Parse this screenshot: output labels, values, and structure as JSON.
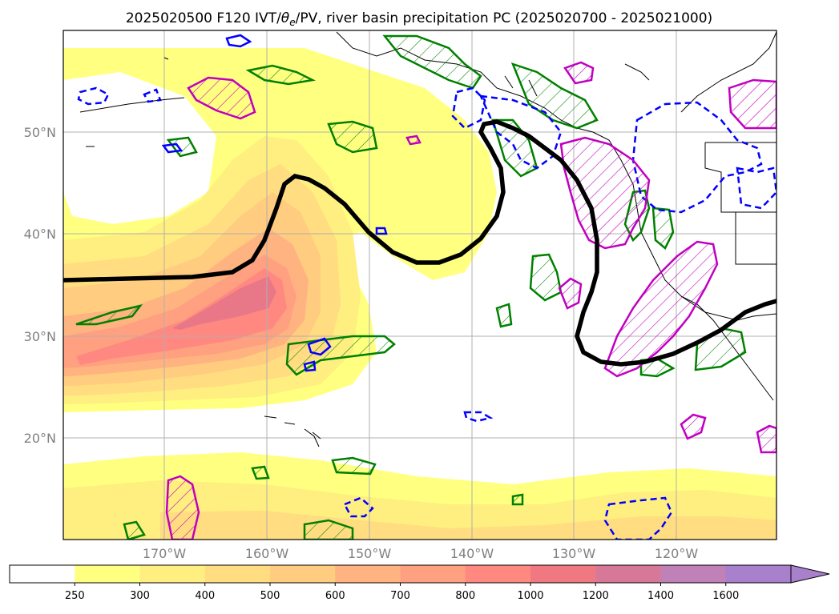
{
  "title_prefix": "2025020500 F120 IVT/",
  "title_theta": "θ",
  "title_theta_sub": "e",
  "title_suffix": "/PV, river basin precipitation PC (2025020700 - 2025021000)",
  "map": {
    "lat_labels": [
      "50°N",
      "40°N",
      "30°N",
      "20°N"
    ],
    "lon_labels": [
      "170°W",
      "160°W",
      "150°W",
      "140°W",
      "130°W",
      "120°W"
    ],
    "colors": {
      "land_outline": "#000000",
      "gridline": "#b0b0b0",
      "pv_contour": "#000000",
      "green_contour": "#008000",
      "blue_dashed_contour": "#0000ff",
      "magenta_contour": "#c000c0"
    }
  },
  "colorbar": {
    "ticks": [
      "250",
      "300",
      "400",
      "500",
      "600",
      "700",
      "800",
      "1000",
      "1200",
      "1400",
      "1600"
    ],
    "colors": [
      "#ffffff",
      "#ffff80",
      "#ffee80",
      "#ffdd80",
      "#ffcc80",
      "#ffb380",
      "#ffa080",
      "#ff8880",
      "#f07880",
      "#d87898",
      "#c080b8",
      "#a880cc"
    ],
    "extend": "max"
  }
}
